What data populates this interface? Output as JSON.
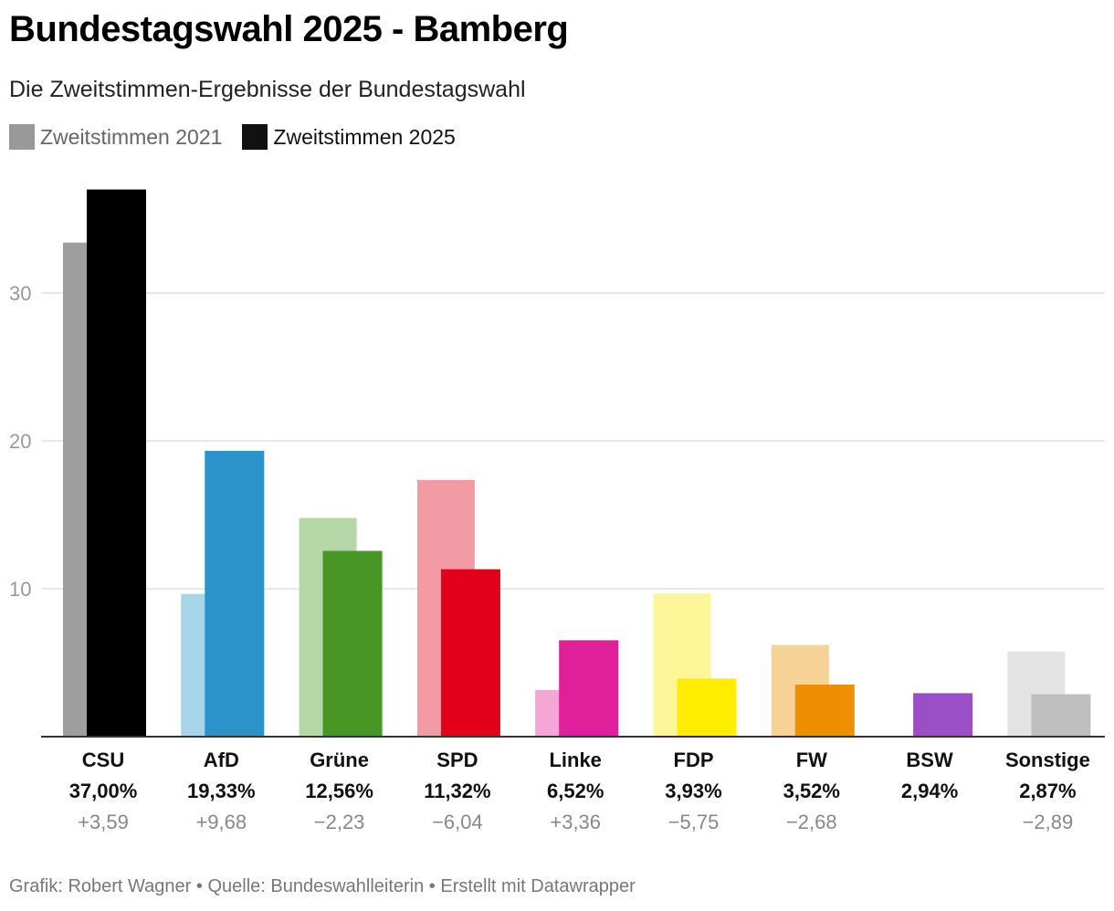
{
  "header": {
    "title": "Bundestagswahl 2025 - Bamberg",
    "subtitle": "Die Zweitstimmen-Ergebnisse der Bundestagswahl"
  },
  "legend": {
    "label_2021": "Zweitstimmen 2021",
    "label_2025": "Zweitstimmen 2025",
    "color_2021": "#999999",
    "color_2025": "#111111"
  },
  "chart_data": {
    "type": "bar",
    "title": "Bundestagswahl 2025 - Bamberg",
    "subtitle": "Die Zweitstimmen-Ergebnisse der Bundestagswahl",
    "xlabel": "",
    "ylabel": "",
    "ylim": [
      0,
      37
    ],
    "yticks": [
      "10",
      "20",
      "30"
    ],
    "grid": true,
    "legend_position": "top-left",
    "categories": [
      "CSU",
      "AfD",
      "Grüne",
      "SPD",
      "Linke",
      "FDP",
      "FW",
      "BSW",
      "Sonstige"
    ],
    "series": [
      {
        "name": "Zweitstimmen 2021",
        "values": [
          33.41,
          9.65,
          14.79,
          17.36,
          3.16,
          9.68,
          6.2,
          null,
          5.76
        ]
      },
      {
        "name": "Zweitstimmen 2025",
        "values": [
          37.0,
          19.33,
          12.56,
          11.32,
          6.52,
          3.93,
          3.52,
          2.94,
          2.87
        ]
      }
    ],
    "value_labels": [
      "37,00%",
      "19,33%",
      "12,56%",
      "11,32%",
      "6,52%",
      "3,93%",
      "3,52%",
      "2,94%",
      "2,87%"
    ],
    "change_labels": [
      "+3,59",
      "+9,68",
      "−2,23",
      "−6,04",
      "+3,36",
      "−5,75",
      "−2,68",
      "",
      "−2,89"
    ],
    "colors_2021": [
      "#9e9e9e",
      "#a8d4ea",
      "#b5d6a6",
      "#f29ba4",
      "#f4a6d6",
      "#fff599",
      "#f7d296",
      null,
      "#e3e3e3"
    ],
    "colors_2025": [
      "#000000",
      "#2b93c9",
      "#489624",
      "#e3001b",
      "#e01f9b",
      "#ffed00",
      "#ef8f00",
      "#9b4fc6",
      "#bfbfbf"
    ]
  },
  "footer": {
    "text": "Grafik: Robert Wagner • Quelle: Bundeswahlleiterin • Erstellt mit Datawrapper"
  }
}
